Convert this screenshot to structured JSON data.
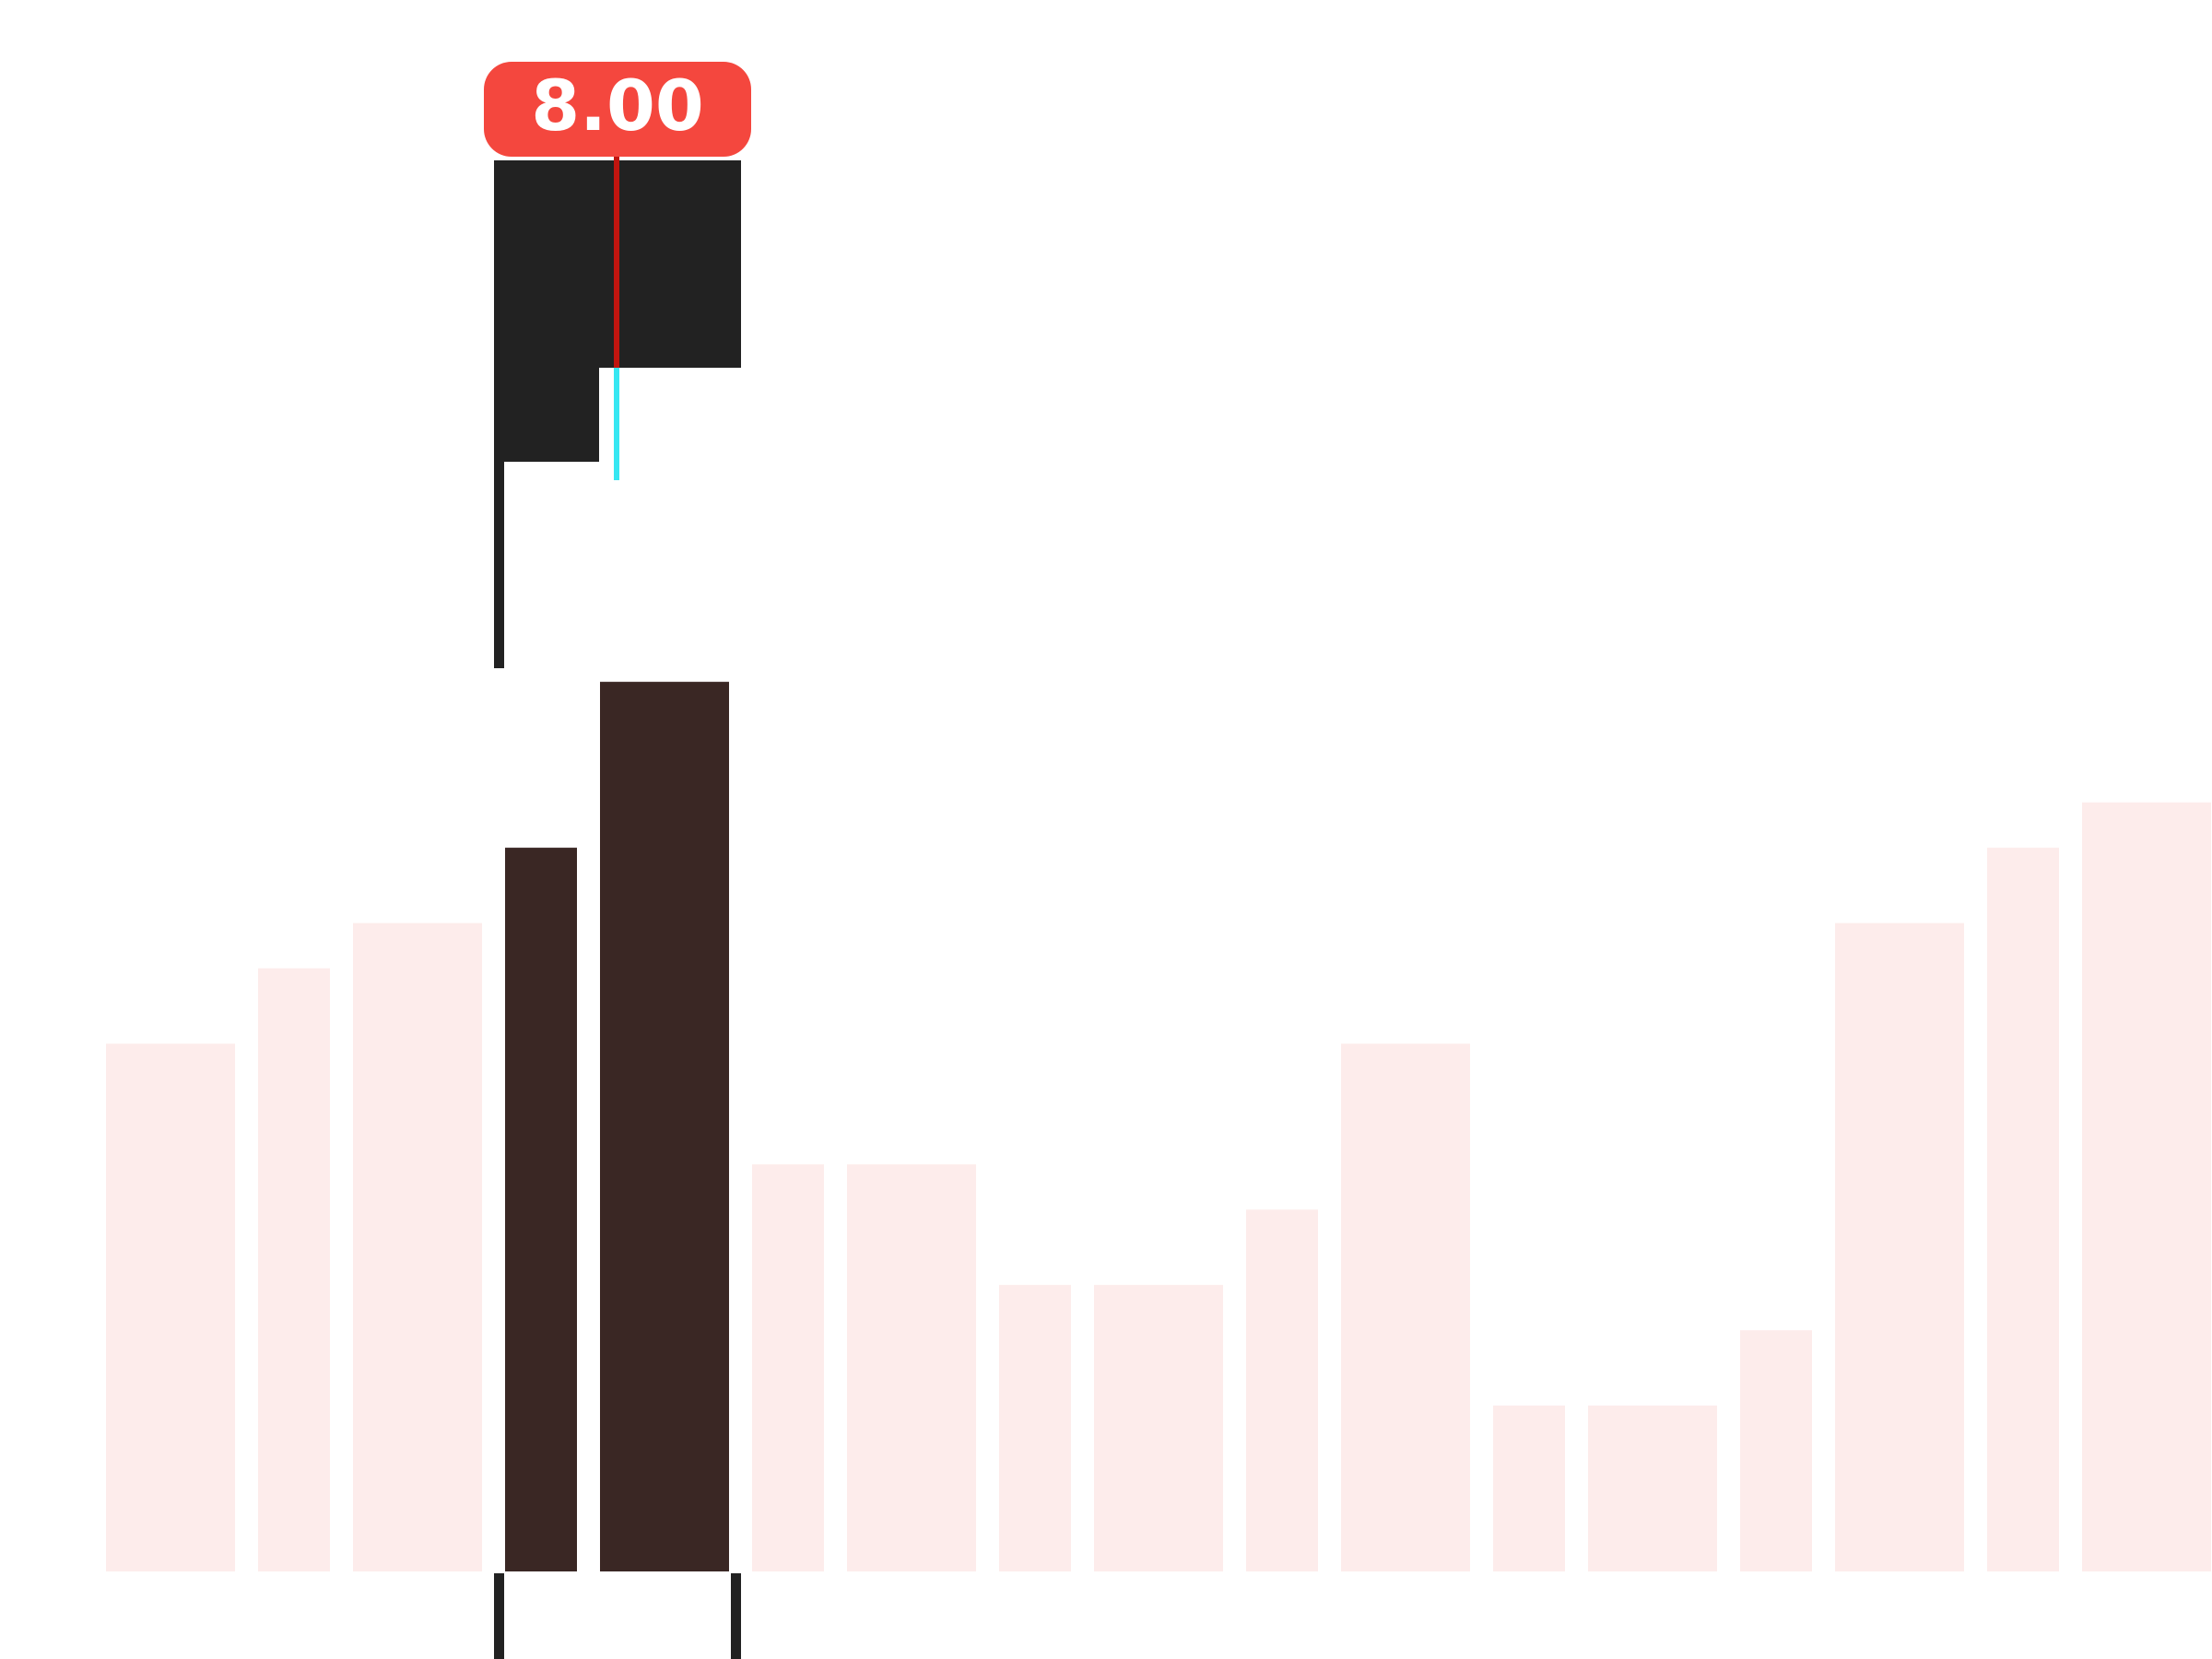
{
  "chart_data": {
    "type": "bar",
    "title": "",
    "xlabel": "",
    "ylabel": "",
    "ylim": [
      0,
      10
    ],
    "grid": false,
    "legend": "none",
    "values": [
      3.5,
      4.0,
      4.3,
      4.8,
      5.9,
      2.7,
      2.7,
      1.9,
      1.9,
      2.4,
      3.5,
      1.1,
      1.1,
      1.6,
      4.3,
      4.8,
      5.1
    ],
    "selected_indices": [
      3,
      4
    ],
    "tooltip": {
      "value_label": "8.00",
      "value": 8.0
    },
    "colors": {
      "bar_default": "#fdeceb",
      "bar_selected": "#3a2724",
      "tooltip_bg": "#f4473e",
      "tooltip_text": "#ffffff",
      "indicator_dark": "#222222",
      "needle_red": "#c1150f",
      "needle_cyan": "#36e7f2"
    }
  }
}
